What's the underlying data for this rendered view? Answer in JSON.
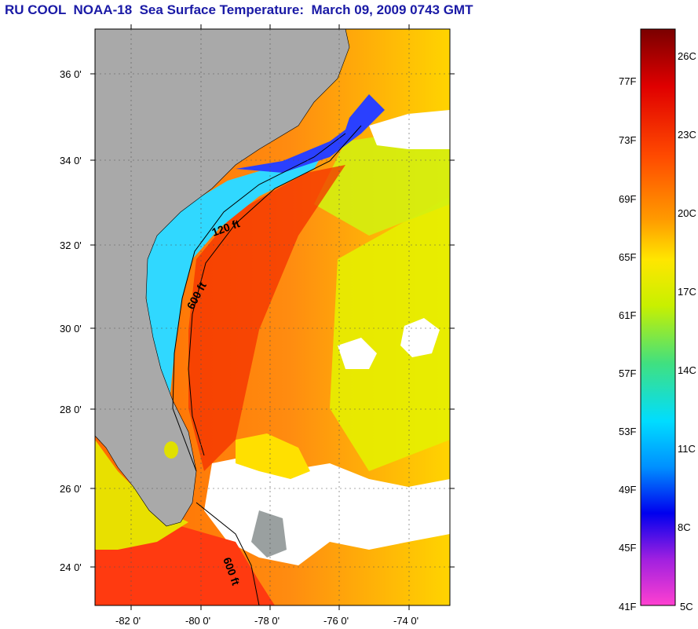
{
  "title": "RU COOL  NOAA-18  Sea Surface Temperature:  March 09, 2009 0743 GMT",
  "map": {
    "lat_labels": [
      "36 0'",
      "34 0'",
      "32 0'",
      "30 0'",
      "28 0'",
      "26 0'",
      "24 0'"
    ],
    "lon_labels": [
      "-82 0'",
      "-80 0'",
      "-78 0'",
      "-76 0'",
      "-74 0'"
    ],
    "contour_labels": [
      "120 ft",
      "600 ft",
      "600 ft"
    ]
  },
  "colorbar": {
    "fahrenheit": [
      "77F",
      "73F",
      "69F",
      "65F",
      "61F",
      "57F",
      "53F",
      "49F",
      "45F",
      "41F"
    ],
    "celsius": [
      "26C",
      "23C",
      "20C",
      "17C",
      "14C",
      "11C",
      "8C",
      "5C"
    ]
  },
  "colors": {
    "title": "#1a1aa6",
    "land": "#a9a9a9",
    "cloud": "#ffffff"
  }
}
